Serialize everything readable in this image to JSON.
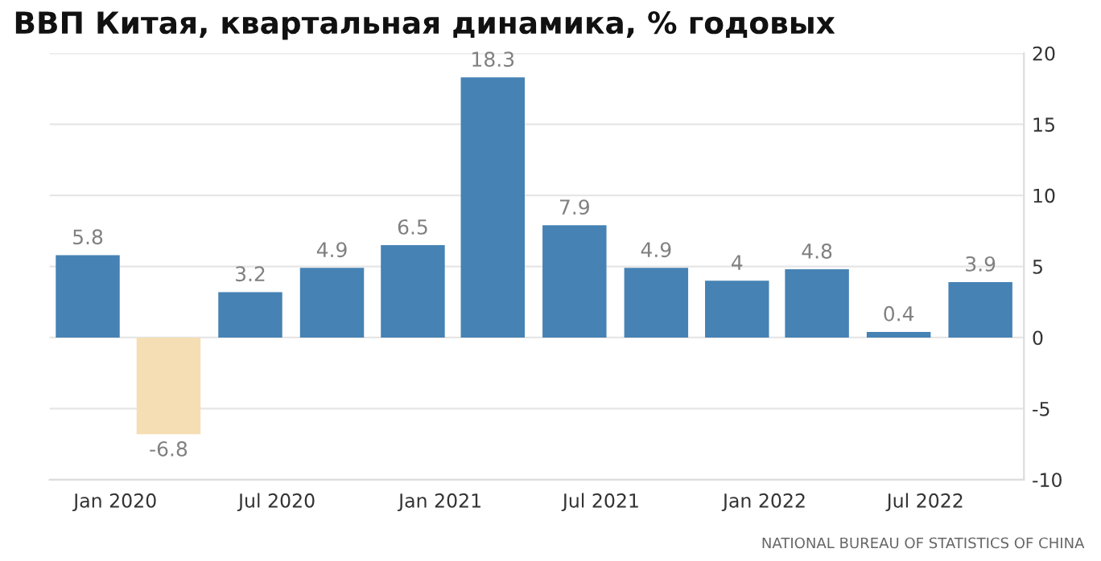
{
  "chart_data": {
    "type": "bar",
    "title": "ВВП Китая, квартальная динамика, % годовых",
    "x": [
      "2019-12",
      "2020-03",
      "2020-06",
      "2020-09",
      "2020-12",
      "2021-03",
      "2021-06",
      "2021-09",
      "2021-12",
      "2022-03",
      "2022-06",
      "2022-09"
    ],
    "values": [
      5.8,
      -6.8,
      3.2,
      4.9,
      6.5,
      18.3,
      7.9,
      4.9,
      4,
      4.8,
      0.4,
      3.9
    ],
    "colors": [
      "#4682b4",
      "#f5deb3",
      "#4682b4",
      "#4682b4",
      "#4682b4",
      "#4682b4",
      "#4682b4",
      "#4682b4",
      "#4682b4",
      "#4682b4",
      "#4682b4",
      "#4682b4"
    ],
    "xlim": [
      "2019-10-19",
      "2022-10-20"
    ],
    "xticks": [
      {
        "value": "2020-01",
        "label": "Jan 2020"
      },
      {
        "value": "2020-07",
        "label": "Jul 2020"
      },
      {
        "value": "2021-01",
        "label": "Jan 2021"
      },
      {
        "value": "2021-07",
        "label": "Jul 2021"
      },
      {
        "value": "2022-01",
        "label": "Jan 2022"
      },
      {
        "value": "2022-07",
        "label": "Jul 2022"
      }
    ],
    "ylim": [
      -10,
      20
    ],
    "yticks": [
      -10,
      -5,
      0,
      5,
      10,
      15,
      20
    ],
    "grid": "y",
    "data_labels": true,
    "annotations": [
      "NATIONAL BUREAU OF STATISTICS OF CHINA"
    ]
  }
}
